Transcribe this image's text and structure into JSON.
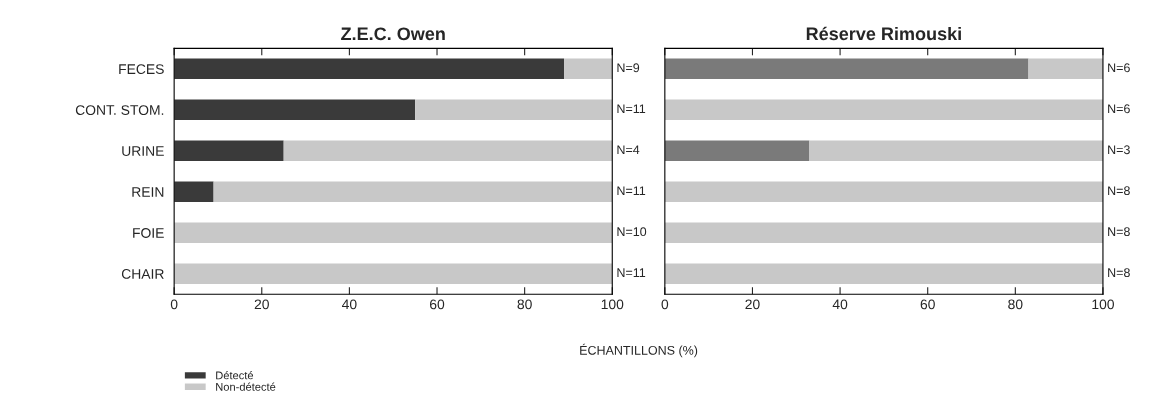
{
  "chart_data": [
    {
      "type": "bar",
      "title": "Z.E.C. Owen",
      "orientation": "horizontal",
      "stacked": true,
      "xlabel": "ÉCHANTILLONS (%)",
      "categories": [
        "FECES",
        "CONT. STOM.",
        "URINE",
        "REIN",
        "FOIE",
        "CHAIR"
      ],
      "series": [
        {
          "name": "Détecté",
          "color": "#3a3a3a",
          "values": [
            89,
            55,
            25,
            9,
            0,
            0
          ]
        },
        {
          "name": "Non-détecté",
          "color": "#c8c8c8",
          "values": [
            11,
            45,
            75,
            91,
            100,
            100
          ]
        }
      ],
      "xlim": [
        0,
        100
      ],
      "xticks": [
        0,
        20,
        40,
        60,
        80,
        100
      ],
      "grid": false,
      "legend": "bottom left",
      "annotations": [
        "N=9",
        "N=11",
        "N=4",
        "N=11",
        "N=10",
        "N=11"
      ]
    },
    {
      "type": "bar",
      "title": "Réserve Rimouski",
      "orientation": "horizontal",
      "stacked": true,
      "categories": [
        null,
        null,
        null,
        null,
        null,
        null
      ],
      "series": [
        {
          "color": "#7a7a7a",
          "values": [
            83,
            0,
            33,
            0,
            0,
            0
          ]
        },
        {
          "color": "#c8c8c8",
          "values": [
            17,
            100,
            67,
            100,
            100,
            100
          ]
        }
      ],
      "xlim": [
        0,
        100
      ],
      "xticks": [
        0,
        20,
        40,
        60,
        80,
        100
      ],
      "grid": false,
      "annotations": [
        "N=6",
        "N=6",
        "N=3",
        "N=8",
        "N=8",
        "N=8"
      ]
    }
  ]
}
